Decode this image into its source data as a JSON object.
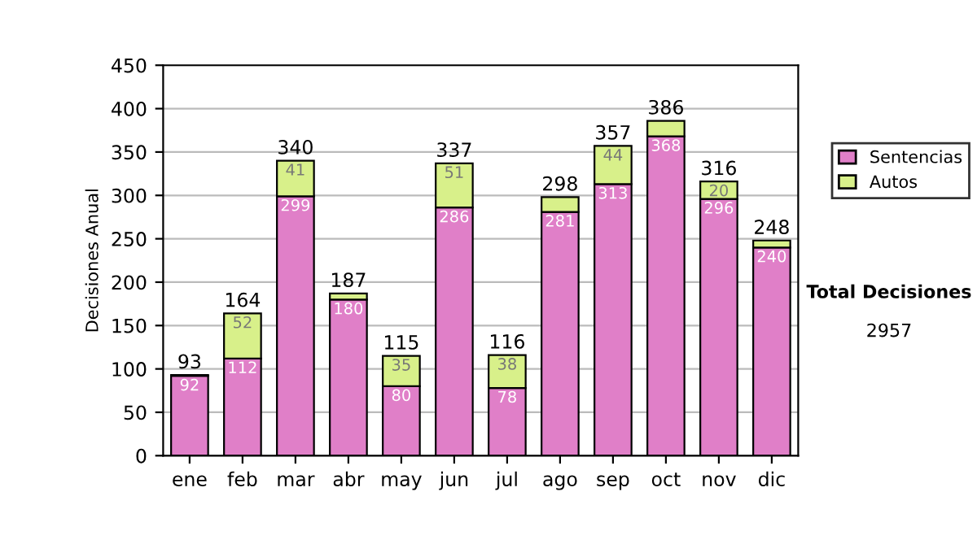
{
  "chart_data": {
    "type": "bar",
    "stacked": true,
    "ylabel": "Decisiones Anual",
    "categories": [
      "ene",
      "feb",
      "mar",
      "abr",
      "may",
      "jun",
      "jul",
      "ago",
      "sep",
      "oct",
      "nov",
      "dic"
    ],
    "series": [
      {
        "name": "Sentencias",
        "color": "#e07fc8",
        "values": [
          92,
          112,
          299,
          180,
          80,
          286,
          78,
          281,
          313,
          368,
          296,
          240
        ],
        "value_labels": [
          "92",
          "112",
          "299",
          "180",
          "80",
          "286",
          "78",
          "281",
          "313",
          "368",
          "296",
          "240"
        ]
      },
      {
        "name": "Autos",
        "color": "#d8f08a",
        "values": [
          1,
          52,
          41,
          7,
          35,
          51,
          38,
          17,
          44,
          18,
          20,
          8
        ],
        "value_labels": [
          null,
          "52",
          "41",
          null,
          "35",
          "51",
          "38",
          null,
          "44",
          null,
          "20",
          null
        ]
      }
    ],
    "totals": [
      "93",
      "164",
      "340",
      "187",
      "115",
      "337",
      "116",
      "298",
      "357",
      "386",
      "316",
      "248"
    ],
    "ylim": [
      0,
      450
    ],
    "yticks": [
      0,
      50,
      100,
      150,
      200,
      250,
      300,
      350,
      400,
      450
    ],
    "grid": "y",
    "legend": "right",
    "annotations": [
      "Total Decisiones",
      "2957"
    ]
  }
}
